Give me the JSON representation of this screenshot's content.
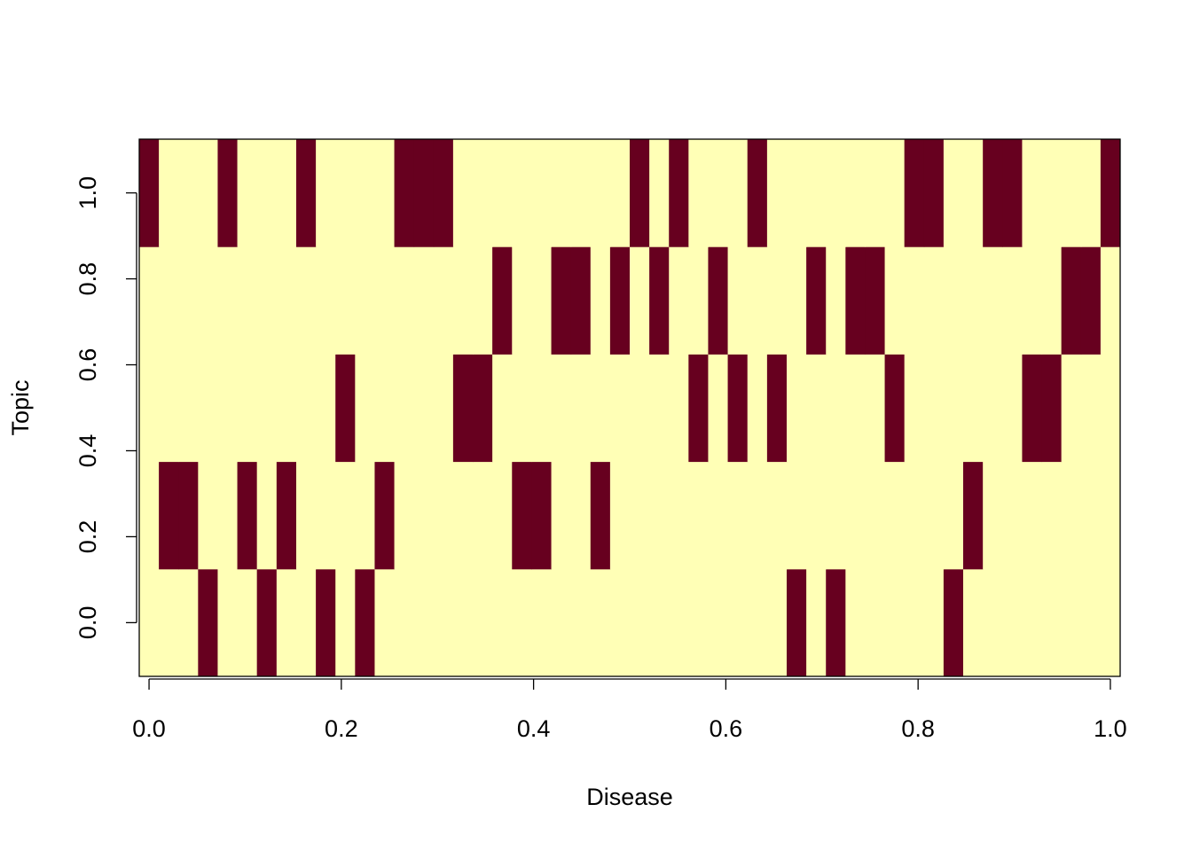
{
  "chart_data": {
    "type": "heatmap",
    "x_label": "Disease",
    "y_label": "Topic",
    "x": [
      0,
      0.0204,
      0.0408,
      0.0612,
      0.0816,
      0.102,
      0.1224,
      0.1429,
      0.1633,
      0.1837,
      0.2041,
      0.2245,
      0.2449,
      0.2653,
      0.2857,
      0.3061,
      0.3265,
      0.3469,
      0.3673,
      0.3878,
      0.4082,
      0.4286,
      0.449,
      0.4694,
      0.4898,
      0.5102,
      0.5306,
      0.551,
      0.5714,
      0.5918,
      0.6122,
      0.6327,
      0.6531,
      0.6735,
      0.6939,
      0.7143,
      0.7347,
      0.7551,
      0.7755,
      0.7959,
      0.8163,
      0.8367,
      0.8571,
      0.8776,
      0.898,
      0.9184,
      0.9388,
      0.9592,
      0.9796,
      1
    ],
    "y": [
      0,
      0.25,
      0.5,
      0.75,
      1
    ],
    "z": [
      [
        0,
        0,
        0,
        1,
        0,
        0,
        1,
        0,
        0,
        1,
        0,
        1,
        0,
        0,
        0,
        0,
        0,
        0,
        0,
        0,
        0,
        0,
        0,
        0,
        0,
        0,
        0,
        0,
        0,
        0,
        0,
        0,
        0,
        1,
        0,
        1,
        0,
        0,
        0,
        0,
        0,
        1,
        0,
        0,
        0,
        0,
        0,
        0,
        0,
        0
      ],
      [
        0,
        1,
        1,
        0,
        0,
        1,
        0,
        1,
        0,
        0,
        0,
        0,
        1,
        0,
        0,
        0,
        0,
        0,
        0,
        1,
        1,
        0,
        0,
        1,
        0,
        0,
        0,
        0,
        0,
        0,
        0,
        0,
        0,
        0,
        0,
        0,
        0,
        0,
        0,
        0,
        0,
        0,
        1,
        0,
        0,
        0,
        0,
        0,
        0,
        0
      ],
      [
        0,
        0,
        0,
        0,
        0,
        0,
        0,
        0,
        0,
        0,
        1,
        0,
        0,
        0,
        0,
        0,
        1,
        1,
        0,
        0,
        0,
        0,
        0,
        0,
        0,
        0,
        0,
        0,
        1,
        0,
        1,
        0,
        1,
        0,
        0,
        0,
        0,
        0,
        1,
        0,
        0,
        0,
        0,
        0,
        0,
        1,
        1,
        0,
        0,
        0
      ],
      [
        0,
        0,
        0,
        0,
        0,
        0,
        0,
        0,
        0,
        0,
        0,
        0,
        0,
        0,
        0,
        0,
        0,
        0,
        1,
        0,
        0,
        1,
        1,
        0,
        1,
        0,
        1,
        0,
        0,
        1,
        0,
        0,
        0,
        0,
        1,
        0,
        1,
        1,
        0,
        0,
        0,
        0,
        0,
        0,
        0,
        0,
        0,
        1,
        1,
        0
      ],
      [
        1,
        0,
        0,
        0,
        1,
        0,
        0,
        0,
        1,
        0,
        0,
        0,
        0,
        1,
        1,
        1,
        0,
        0,
        0,
        0,
        0,
        0,
        0,
        0,
        0,
        1,
        0,
        1,
        0,
        0,
        0,
        1,
        0,
        0,
        0,
        0,
        0,
        0,
        0,
        1,
        1,
        0,
        0,
        1,
        1,
        0,
        0,
        0,
        0,
        1
      ]
    ],
    "colors": [
      "#FFFFB6",
      "#67001F"
    ],
    "xlim": [
      -0.0102,
      1.0102
    ],
    "ylim": [
      -0.125,
      1.125
    ],
    "xticks": [
      {
        "value": 0,
        "label": "0.0"
      },
      0.2,
      0.4,
      0.6,
      0.8,
      {
        "value": 1,
        "label": "1.0"
      }
    ],
    "yticks": [
      {
        "value": 0,
        "label": "0.0"
      },
      0.2,
      0.4,
      0.6,
      0.8,
      {
        "value": 1,
        "label": "1.0"
      }
    ]
  }
}
